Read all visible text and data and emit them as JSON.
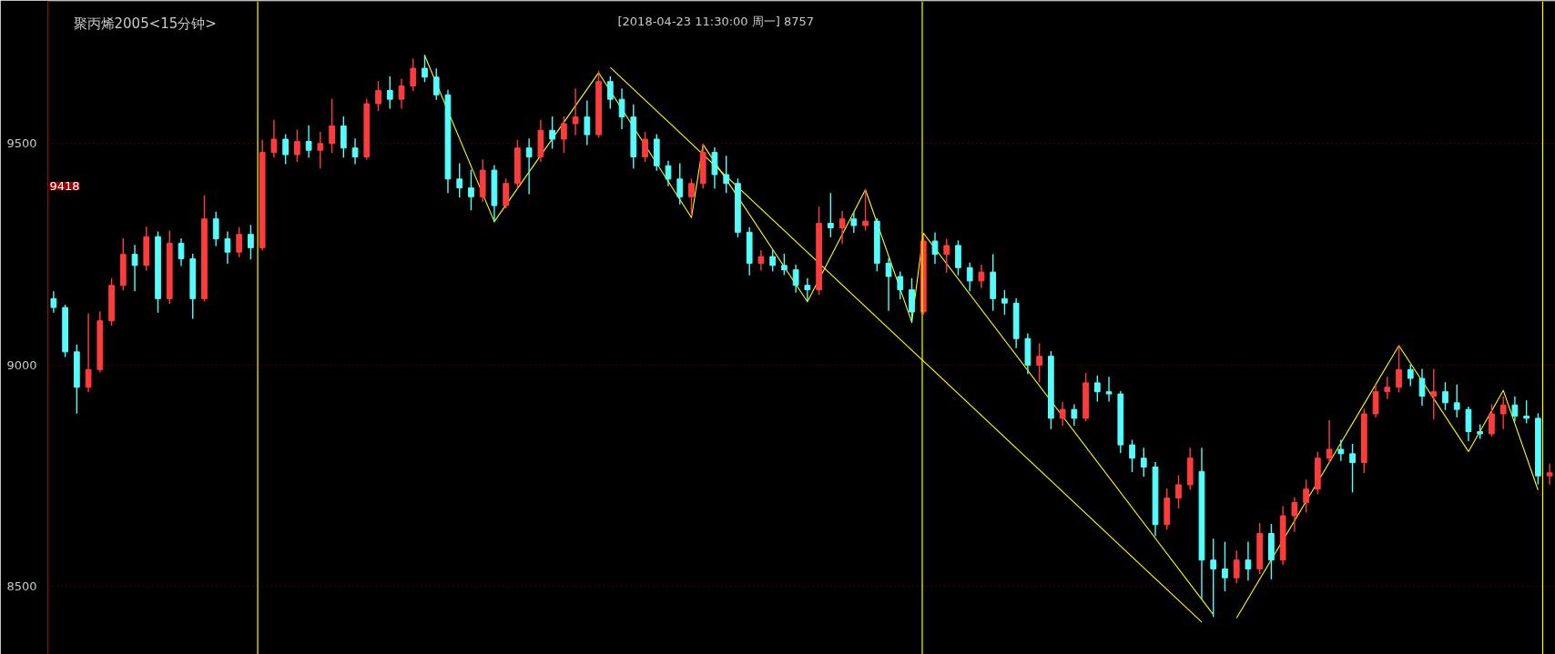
{
  "chart_data": {
    "type": "candlestick",
    "title": "聚丙烯2005<15分钟>",
    "subtitle": "[2018-04-23  11:30:00 周一]   8757",
    "categories": [
      null,
      null,
      null,
      null,
      null,
      null,
      null,
      null,
      null,
      null,
      null,
      null,
      null,
      null,
      null,
      null,
      null,
      null,
      null,
      null,
      null,
      null,
      null,
      null,
      null,
      null,
      null,
      null,
      null,
      null,
      null,
      null,
      null,
      null,
      null,
      null,
      null,
      null,
      null,
      null,
      null,
      null,
      null,
      null,
      null,
      null,
      null,
      null,
      null,
      null,
      null,
      null,
      null,
      null,
      null,
      null,
      null,
      null,
      null,
      null,
      null,
      null,
      null,
      null,
      null,
      null,
      null,
      null,
      null,
      null,
      null,
      null,
      null,
      null,
      null,
      null,
      null,
      null,
      null,
      null,
      null,
      null,
      null,
      null,
      null,
      null,
      null,
      null,
      null,
      null,
      null,
      null,
      null,
      null,
      null,
      null,
      null,
      null,
      null,
      null,
      null,
      null,
      null,
      null,
      null,
      null,
      null,
      null,
      null,
      null,
      null,
      null,
      null,
      null,
      null,
      null,
      null,
      null,
      null,
      null,
      null,
      null,
      null,
      null,
      null,
      null,
      null,
      null,
      null,
      null
    ],
    "ohlc": [
      [
        9150,
        9165,
        9120,
        9130
      ],
      [
        9130,
        9135,
        9020,
        9030
      ],
      [
        9030,
        9045,
        8892,
        8950
      ],
      [
        8950,
        9115,
        8940,
        8990
      ],
      [
        8990,
        9120,
        8985,
        9100
      ],
      [
        9100,
        9195,
        9090,
        9180
      ],
      [
        9180,
        9285,
        9170,
        9250
      ],
      [
        9250,
        9270,
        9168,
        9225
      ],
      [
        9225,
        9311,
        9215,
        9290
      ],
      [
        9290,
        9300,
        9120,
        9150
      ],
      [
        9150,
        9302,
        9140,
        9275
      ],
      [
        9275,
        9285,
        9225,
        9240
      ],
      [
        9240,
        9250,
        9106,
        9150
      ],
      [
        9150,
        9382,
        9145,
        9330
      ],
      [
        9330,
        9345,
        9270,
        9285
      ],
      [
        9285,
        9300,
        9230,
        9255
      ],
      [
        9255,
        9310,
        9245,
        9295
      ],
      [
        9295,
        9315,
        9240,
        9265
      ],
      [
        9265,
        9507,
        9260,
        9480
      ],
      [
        9480,
        9552,
        9470,
        9510
      ],
      [
        9510,
        9520,
        9455,
        9475
      ],
      [
        9475,
        9530,
        9460,
        9505
      ],
      [
        9505,
        9540,
        9470,
        9485
      ],
      [
        9485,
        9525,
        9445,
        9500
      ],
      [
        9500,
        9600,
        9480,
        9540
      ],
      [
        9540,
        9560,
        9470,
        9490
      ],
      [
        9490,
        9510,
        9455,
        9470
      ],
      [
        9470,
        9600,
        9465,
        9590
      ],
      [
        9590,
        9640,
        9575,
        9620
      ],
      [
        9620,
        9650,
        9580,
        9600
      ],
      [
        9600,
        9645,
        9580,
        9630
      ],
      [
        9630,
        9690,
        9620,
        9670
      ],
      [
        9670,
        9699,
        9640,
        9650
      ],
      [
        9650,
        9668,
        9600,
        9610
      ],
      [
        9610,
        9620,
        9390,
        9420
      ],
      [
        9420,
        9454,
        9380,
        9400
      ],
      [
        9400,
        9440,
        9351,
        9380
      ],
      [
        9380,
        9463,
        9370,
        9440
      ],
      [
        9440,
        9450,
        9324,
        9360
      ],
      [
        9360,
        9420,
        9355,
        9410
      ],
      [
        9410,
        9507,
        9400,
        9490
      ],
      [
        9490,
        9510,
        9387,
        9470
      ],
      [
        9470,
        9552,
        9460,
        9530
      ],
      [
        9530,
        9560,
        9490,
        9510
      ],
      [
        9510,
        9560,
        9480,
        9545
      ],
      [
        9545,
        9623,
        9520,
        9560
      ],
      [
        9560,
        9596,
        9498,
        9520
      ],
      [
        9520,
        9663,
        9515,
        9640
      ],
      [
        9640,
        9650,
        9580,
        9600
      ],
      [
        9600,
        9623,
        9534,
        9560
      ],
      [
        9560,
        9587,
        9445,
        9470
      ],
      [
        9470,
        9525,
        9460,
        9510
      ],
      [
        9510,
        9520,
        9440,
        9450
      ],
      [
        9450,
        9460,
        9405,
        9420
      ],
      [
        9420,
        9454,
        9364,
        9380
      ],
      [
        9380,
        9420,
        9338,
        9410
      ],
      [
        9410,
        9498,
        9400,
        9480
      ],
      [
        9480,
        9490,
        9400,
        9430
      ],
      [
        9430,
        9471,
        9390,
        9410
      ],
      [
        9410,
        9420,
        9290,
        9300
      ],
      [
        9300,
        9310,
        9204,
        9230
      ],
      [
        9230,
        9258,
        9215,
        9245
      ],
      [
        9245,
        9258,
        9213,
        9225
      ],
      [
        9225,
        9250,
        9205,
        9215
      ],
      [
        9215,
        9225,
        9165,
        9180
      ],
      [
        9180,
        9195,
        9146,
        9170
      ],
      [
        9170,
        9356,
        9160,
        9320
      ],
      [
        9320,
        9387,
        9290,
        9310
      ],
      [
        9310,
        9347,
        9275,
        9330
      ],
      [
        9330,
        9345,
        9300,
        9315
      ],
      [
        9315,
        9396,
        9305,
        9325
      ],
      [
        9325,
        9330,
        9213,
        9230
      ],
      [
        9230,
        9240,
        9124,
        9200
      ],
      [
        9200,
        9210,
        9150,
        9170
      ],
      [
        9170,
        9195,
        9097,
        9120
      ],
      [
        9120,
        9293,
        9115,
        9280
      ],
      [
        9280,
        9298,
        9230,
        9250
      ],
      [
        9250,
        9284,
        9210,
        9270
      ],
      [
        9270,
        9280,
        9204,
        9220
      ],
      [
        9220,
        9230,
        9168,
        9190
      ],
      [
        9190,
        9225,
        9175,
        9210
      ],
      [
        9210,
        9249,
        9124,
        9150
      ],
      [
        9150,
        9168,
        9115,
        9140
      ],
      [
        9140,
        9150,
        9040,
        9060
      ],
      [
        9060,
        9070,
        8981,
        9000
      ],
      [
        9000,
        9048,
        8963,
        9020
      ],
      [
        9020,
        9030,
        8857,
        8880
      ],
      [
        8880,
        8915,
        8865,
        8900
      ],
      [
        8900,
        8910,
        8865,
        8880
      ],
      [
        8880,
        8981,
        8875,
        8960
      ],
      [
        8960,
        8975,
        8919,
        8940
      ],
      [
        8940,
        8972,
        8919,
        8935
      ],
      [
        8935,
        8940,
        8803,
        8820
      ],
      [
        8820,
        8830,
        8760,
        8790
      ],
      [
        8790,
        8812,
        8750,
        8770
      ],
      [
        8770,
        8780,
        8616,
        8640
      ],
      [
        8640,
        8720,
        8630,
        8700
      ],
      [
        8700,
        8750,
        8678,
        8730
      ],
      [
        8730,
        8812,
        8720,
        8790
      ],
      [
        8760,
        8812,
        8473,
        8560
      ],
      [
        8560,
        8607,
        8433,
        8540
      ],
      [
        8540,
        8600,
        8491,
        8520
      ],
      [
        8520,
        8580,
        8509,
        8560
      ],
      [
        8560,
        8600,
        8515,
        8540
      ],
      [
        8540,
        8642,
        8530,
        8620
      ],
      [
        8620,
        8640,
        8518,
        8560
      ],
      [
        8560,
        8680,
        8550,
        8660
      ],
      [
        8660,
        8700,
        8625,
        8690
      ],
      [
        8690,
        8740,
        8669,
        8720
      ],
      [
        8720,
        8803,
        8710,
        8790
      ],
      [
        8790,
        8874,
        8780,
        8810
      ],
      [
        8810,
        8830,
        8785,
        8800
      ],
      [
        8800,
        8821,
        8714,
        8780
      ],
      [
        8780,
        8900,
        8758,
        8890
      ],
      [
        8890,
        8955,
        8883,
        8940
      ],
      [
        8940,
        8972,
        8925,
        8950
      ],
      [
        8950,
        9044,
        8940,
        8990
      ],
      [
        8990,
        9000,
        8954,
        8970
      ],
      [
        8970,
        8990,
        8910,
        8930
      ],
      [
        8930,
        8990,
        8879,
        8940
      ],
      [
        8940,
        8960,
        8900,
        8915
      ],
      [
        8915,
        8955,
        8883,
        8900
      ],
      [
        8900,
        8905,
        8830,
        8850
      ],
      [
        8850,
        8865,
        8835,
        8845
      ],
      [
        8845,
        8910,
        8840,
        8890
      ],
      [
        8890,
        8928,
        8857,
        8910
      ],
      [
        8910,
        8928,
        8874,
        8885
      ],
      [
        8885,
        8919,
        8870,
        8880
      ],
      [
        8880,
        8890,
        8732,
        8750
      ],
      [
        8750,
        8776,
        8732,
        8757
      ]
    ],
    "colors": [
      "#54fcfc",
      "#54fcfc",
      "#54fcfc",
      "#ff3c3c",
      "#ff3c3c",
      "#ff3c3c",
      "#ff3c3c",
      "#54fcfc",
      "#ff3c3c",
      "#54fcfc",
      "#ff3c3c",
      "#54fcfc",
      "#54fcfc",
      "#ff3c3c",
      "#54fcfc",
      "#54fcfc",
      "#ff3c3c",
      "#54fcfc",
      "#ff3c3c",
      "#ff3c3c",
      "#54fcfc",
      "#ff3c3c",
      "#54fcfc",
      "#ff3c3c",
      "#ff3c3c",
      "#54fcfc",
      "#54fcfc",
      "#ff3c3c",
      "#ff3c3c",
      "#54fcfc",
      "#ff3c3c",
      "#ff3c3c",
      "#54fcfc",
      "#54fcfc",
      "#54fcfc",
      "#54fcfc",
      "#54fcfc",
      "#ff3c3c",
      "#54fcfc",
      "#ff3c3c",
      "#ff3c3c",
      "#54fcfc",
      "#ff3c3c",
      "#54fcfc",
      "#ff3c3c",
      "#ff3c3c",
      "#54fcfc",
      "#ff3c3c",
      "#54fcfc",
      "#54fcfc",
      "#54fcfc",
      "#ff3c3c",
      "#54fcfc",
      "#54fcfc",
      "#54fcfc",
      "#ff3c3c",
      "#ff3c3c",
      "#54fcfc",
      "#54fcfc",
      "#54fcfc",
      "#54fcfc",
      "#ff3c3c",
      "#54fcfc",
      "#54fcfc",
      "#54fcfc",
      "#54fcfc",
      "#ff3c3c",
      "#54fcfc",
      "#ff3c3c",
      "#54fcfc",
      "#ff3c3c",
      "#54fcfc",
      "#54fcfc",
      "#54fcfc",
      "#54fcfc",
      "#ff3c3c",
      "#54fcfc",
      "#ff3c3c",
      "#54fcfc",
      "#54fcfc",
      "#ff3c3c",
      "#54fcfc",
      "#54fcfc",
      "#54fcfc",
      "#54fcfc",
      "#ff3c3c",
      "#54fcfc",
      "#ff3c3c",
      "#54fcfc",
      "#ff3c3c",
      "#54fcfc",
      "#54fcfc",
      "#54fcfc",
      "#54fcfc",
      "#54fcfc",
      "#54fcfc",
      "#ff3c3c",
      "#ff3c3c",
      "#ff3c3c",
      "#54fcfc",
      "#54fcfc",
      "#54fcfc",
      "#ff3c3c",
      "#54fcfc",
      "#ff3c3c",
      "#54fcfc",
      "#ff3c3c",
      "#ff3c3c",
      "#ff3c3c",
      "#ff3c3c",
      "#ff3c3c",
      "#54fcfc",
      "#54fcfc",
      "#ff3c3c",
      "#ff3c3c",
      "#ff3c3c",
      "#ff3c3c",
      "#54fcfc",
      "#54fcfc",
      "#ff3c3c",
      "#54fcfc",
      "#54fcfc",
      "#54fcfc",
      "#54fcfc",
      "#ff3c3c",
      "#ff3c3c",
      "#54fcfc",
      "#54fcfc",
      "#54fcfc",
      "#ff3c3c"
    ],
    "series": [
      {
        "type": "line",
        "color": "#ffff00",
        "values": [
          null,
          null,
          null,
          null,
          null,
          null,
          null,
          null,
          null,
          null,
          null,
          null,
          null,
          null,
          null,
          null,
          null,
          null,
          null,
          null,
          null,
          null,
          null,
          null,
          null,
          null,
          null,
          null,
          null,
          null,
          null,
          null,
          9699,
          null,
          null,
          null,
          null,
          null,
          9324,
          null,
          null,
          null,
          null,
          null,
          null,
          null,
          null,
          9660,
          null,
          null,
          null,
          null,
          null,
          null,
          null,
          9333,
          9498,
          null,
          null,
          null,
          null,
          null,
          null,
          null,
          null,
          9143,
          null,
          null,
          null,
          null,
          9396,
          null,
          null,
          null,
          9097,
          9298,
          null,
          null,
          null,
          null,
          null,
          null,
          null,
          null,
          null,
          null,
          null,
          null,
          null,
          null,
          null,
          null,
          null,
          null,
          null,
          null,
          null,
          null,
          null,
          null,
          8437,
          null,
          null,
          null,
          null,
          null,
          null,
          null,
          null,
          null,
          null,
          null,
          null,
          null,
          null,
          null,
          null,
          null,
          null,
          null,
          null,
          null,
          null,
          null,
          null,
          null,
          null,
          null,
          null,
          null
        ]
      },
      {
        "type": "line",
        "color": "#ffff00",
        "values": [
          null,
          null,
          null,
          null,
          null,
          null,
          null,
          null,
          null,
          null,
          null,
          null,
          null,
          null,
          null,
          null,
          null,
          null,
          null,
          null,
          null,
          null,
          null,
          null,
          null,
          null,
          null,
          null,
          null,
          null,
          null,
          null,
          null,
          null,
          null,
          null,
          null,
          null,
          null,
          null,
          null,
          null,
          null,
          null,
          null,
          null,
          null,
          null,
          9672,
          null,
          null,
          null,
          null,
          null,
          null,
          null,
          null,
          null,
          null,
          null,
          null,
          null,
          null,
          null,
          null,
          null,
          null,
          null,
          null,
          null,
          null,
          null,
          null,
          null,
          null,
          null,
          null,
          null,
          null,
          null,
          null,
          null,
          null,
          null,
          null,
          null,
          null,
          null,
          null,
          null,
          null,
          null,
          null,
          null,
          null,
          null,
          null,
          null,
          null,
          8420,
          null,
          null,
          null,
          null,
          null,
          null,
          null,
          null,
          null,
          null,
          null,
          null,
          null,
          null,
          null,
          null,
          null,
          null,
          null,
          null,
          null,
          null,
          null,
          null,
          null,
          null,
          null,
          null,
          null,
          null
        ]
      },
      {
        "type": "line",
        "color": "#ffff00",
        "values": [
          null,
          null,
          null,
          null,
          null,
          null,
          null,
          null,
          null,
          null,
          null,
          null,
          null,
          null,
          null,
          null,
          null,
          null,
          null,
          null,
          null,
          null,
          null,
          null,
          null,
          null,
          null,
          null,
          null,
          null,
          null,
          null,
          null,
          null,
          null,
          null,
          null,
          null,
          null,
          null,
          null,
          null,
          null,
          null,
          null,
          null,
          null,
          null,
          null,
          null,
          null,
          null,
          null,
          null,
          null,
          null,
          null,
          null,
          null,
          null,
          null,
          null,
          null,
          null,
          null,
          null,
          null,
          null,
          null,
          null,
          null,
          null,
          null,
          null,
          null,
          null,
          null,
          null,
          null,
          null,
          null,
          null,
          null,
          null,
          null,
          null,
          null,
          null,
          null,
          null,
          null,
          null,
          null,
          null,
          null,
          null,
          null,
          null,
          null,
          null,
          null,
          null,
          8429,
          null,
          null,
          null,
          null,
          null,
          null,
          null,
          null,
          null,
          null,
          null,
          null,
          null,
          9044,
          null,
          null,
          null,
          null,
          null,
          8805,
          null,
          null,
          8943,
          null,
          null,
          8718,
          null
        ]
      }
    ],
    "annotations": [
      "9418"
    ],
    "ylim": [
      8347,
      9821
    ],
    "yticks": [
      8500,
      9000,
      9500
    ],
    "grid": "y",
    "tick_labels": "y"
  }
}
